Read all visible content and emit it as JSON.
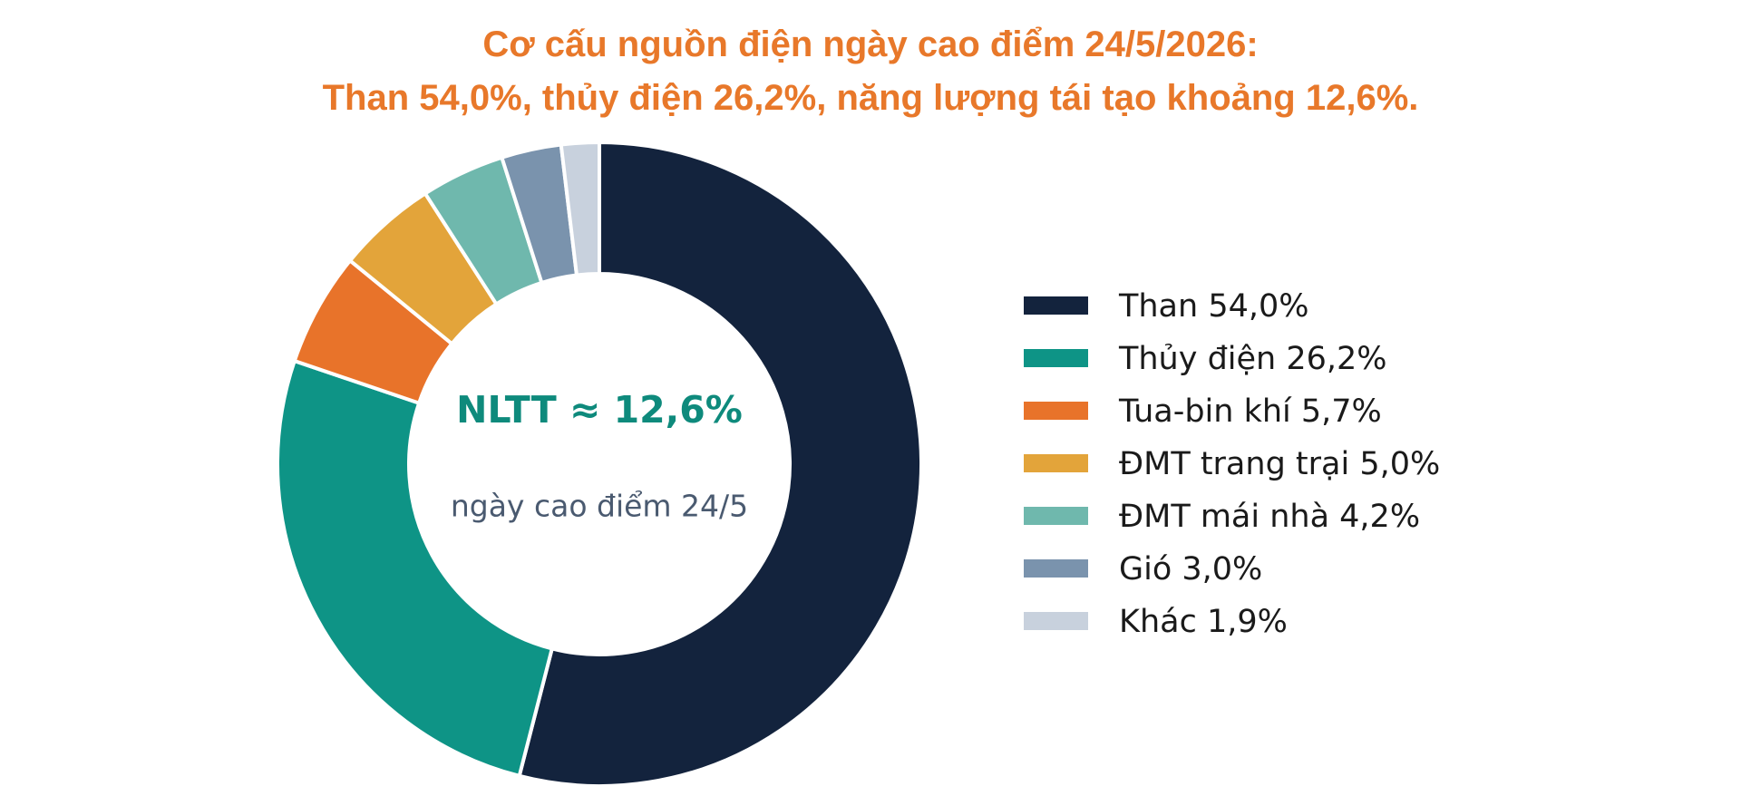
{
  "chart_data": {
    "type": "donut",
    "title": [
      "Cơ cấu nguồn điện ngày cao điểm 24/5/2026:",
      "Than 54,0%, thủy điện 26,2%, năng lượng tái tạo khoảng 12,6%."
    ],
    "categories": [
      "Than 54,0%",
      "Thủy điện 26,2%",
      "Tua-bin khí 5,7%",
      "ĐMT trang trại 5,0%",
      "ĐMT mái nhà 4,2%",
      "Gió 3,0%",
      "Khác 1,9%"
    ],
    "values": [
      54.0,
      26.2,
      5.7,
      5.0,
      4.2,
      3.0,
      1.9
    ],
    "colors": [
      "#13233d",
      "#0e9486",
      "#e8732a",
      "#e3a43a",
      "#6fb8ad",
      "#7a93ad",
      "#c8d1dd"
    ],
    "annotations": [
      "NLTT ≈ 12,6%",
      "ngày cao điểm 24/5"
    ],
    "legend": "right"
  }
}
